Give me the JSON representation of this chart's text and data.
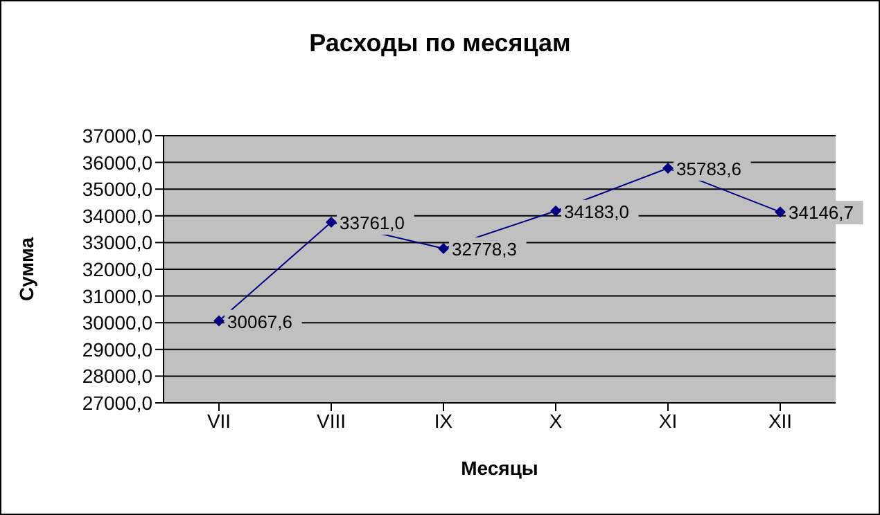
{
  "chart_data": {
    "type": "line",
    "title": "Расходы по месяцам",
    "xlabel": "Месяцы",
    "ylabel": "Сумма",
    "categories": [
      "VII",
      "VIII",
      "IX",
      "X",
      "XI",
      "XII"
    ],
    "series": [
      {
        "color": "#000080",
        "values": [
          30067.6,
          33761.0,
          32778.3,
          34183.0,
          35783.6,
          34146.7
        ],
        "value_labels": [
          "30067,6",
          "33761,0",
          "32778,3",
          "34183,0",
          "35783,6",
          "34146,7"
        ]
      }
    ],
    "ylim": [
      27000,
      37000
    ],
    "yticks": [
      {
        "value": 27000,
        "label": "27000,0"
      },
      {
        "value": 28000,
        "label": "28000,0"
      },
      {
        "value": 29000,
        "label": "29000,0"
      },
      {
        "value": 30000,
        "label": "30000,0"
      },
      {
        "value": 31000,
        "label": "31000,0"
      },
      {
        "value": 32000,
        "label": "32000,0"
      },
      {
        "value": 33000,
        "label": "33000,0"
      },
      {
        "value": 34000,
        "label": "34000,0"
      },
      {
        "value": 35000,
        "label": "35000,0"
      },
      {
        "value": 36000,
        "label": "36000,0"
      },
      {
        "value": 37000,
        "label": "37000,0"
      }
    ],
    "grid": "y",
    "legend": false,
    "marker": "diamond",
    "line_style": "solid"
  }
}
